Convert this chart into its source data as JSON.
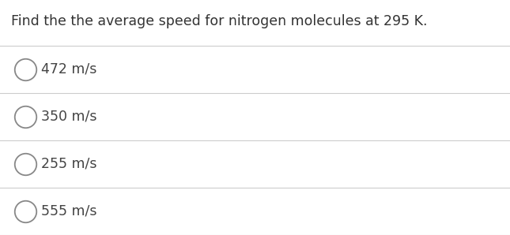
{
  "title": "Find the the average speed for nitrogen molecules at 295 K.",
  "options": [
    "472 m/s",
    "350 m/s",
    "255 m/s",
    "555 m/s"
  ],
  "background_color": "#ffffff",
  "title_color": "#333333",
  "option_color": "#444444",
  "line_color": "#cccccc",
  "circle_edge_color": "#888888",
  "title_fontsize": 12.5,
  "option_fontsize": 12.5,
  "fig_width": 6.45,
  "fig_height": 2.98,
  "dpi": 100
}
